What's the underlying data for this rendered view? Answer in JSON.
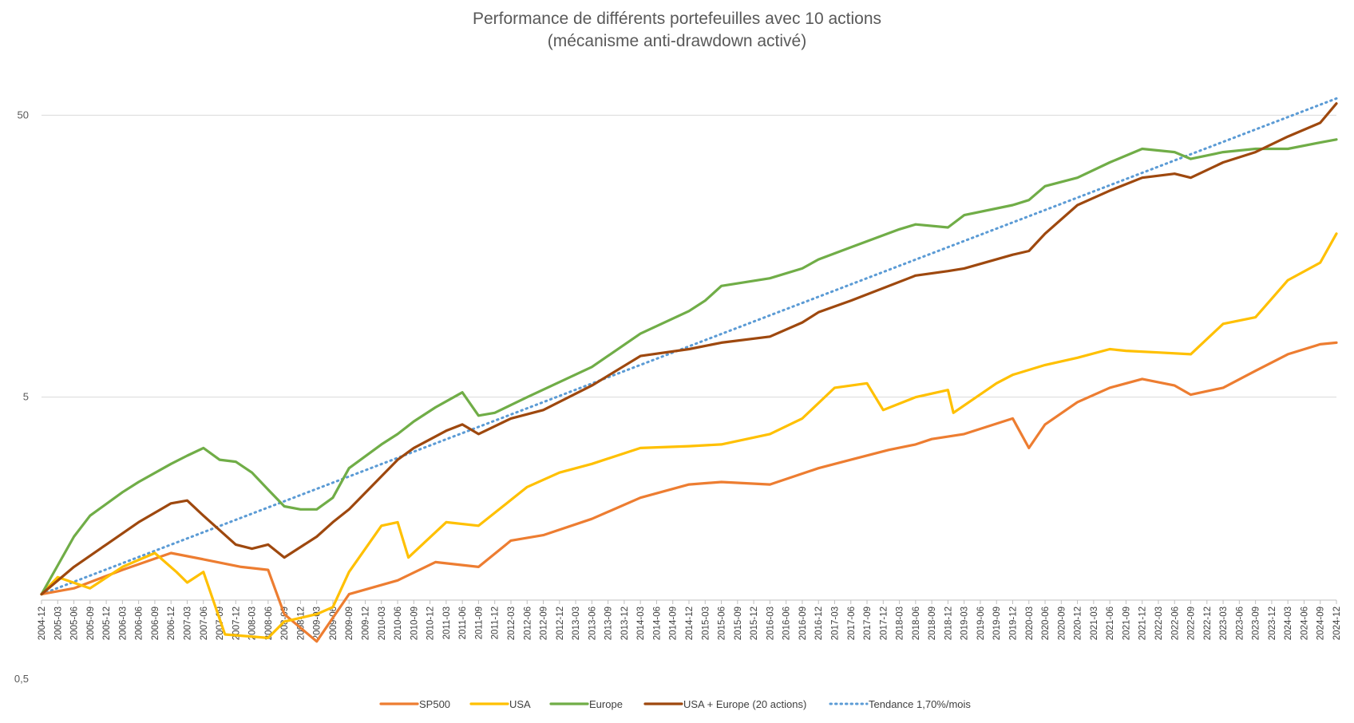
{
  "chart_data": {
    "type": "line",
    "title": "Performance de différents portefeuilles avec 10 actions",
    "subtitle": "(mécanisme anti-drawdown activé)",
    "xlabel": "",
    "ylabel": "",
    "y_scale": "log",
    "ylim": [
      0.5,
      100
    ],
    "y_ticks": [
      {
        "value": 0.5,
        "label": "0,5"
      },
      {
        "value": 5,
        "label": "5"
      },
      {
        "value": 50,
        "label": "50"
      }
    ],
    "grid": true,
    "legend_position": "bottom",
    "x_start": "2004-12",
    "x_end": "2024-12",
    "x_tick_every_months": 3,
    "colors": {
      "SP500": "#ED7D31",
      "USA": "#FFC000",
      "Europe": "#70AD47",
      "USA + Europe (20 actions)": "#9E480E",
      "Tendance 1,70%/mois": "#5B9BD5"
    },
    "series": [
      {
        "name": "SP500",
        "key": "sp500",
        "x": [
          "2004-12",
          "2005-06",
          "2006-03",
          "2006-12",
          "2007-06",
          "2008-01",
          "2008-06",
          "2008-09",
          "2009-03",
          "2009-09",
          "2010-06",
          "2011-01",
          "2011-09",
          "2012-03",
          "2012-09",
          "2013-06",
          "2014-03",
          "2014-12",
          "2015-06",
          "2016-03",
          "2016-12",
          "2017-06",
          "2018-01",
          "2018-06",
          "2018-09",
          "2019-03",
          "2019-12",
          "2020-03",
          "2020-06",
          "2020-12",
          "2021-06",
          "2021-12",
          "2022-06",
          "2022-09",
          "2023-03",
          "2023-09",
          "2024-03",
          "2024-09",
          "2024-12"
        ],
        "y": [
          1.0,
          1.05,
          1.22,
          1.4,
          1.33,
          1.25,
          1.22,
          0.85,
          0.68,
          1.0,
          1.12,
          1.3,
          1.25,
          1.55,
          1.62,
          1.85,
          2.2,
          2.45,
          2.5,
          2.45,
          2.8,
          3.0,
          3.25,
          3.4,
          3.55,
          3.7,
          4.2,
          3.3,
          4.0,
          4.8,
          5.4,
          5.8,
          5.5,
          5.1,
          5.4,
          6.2,
          7.1,
          7.7,
          7.8
        ]
      },
      {
        "name": "USA",
        "key": "usa",
        "x": [
          "2004-12",
          "2005-03",
          "2005-09",
          "2006-03",
          "2006-09",
          "2007-01",
          "2007-03",
          "2007-06",
          "2007-10",
          "2008-06",
          "2008-09",
          "2009-03",
          "2009-06",
          "2009-09",
          "2010-03",
          "2010-06",
          "2010-08",
          "2011-03",
          "2011-09",
          "2012-06",
          "2012-12",
          "2013-06",
          "2014-03",
          "2014-12",
          "2015-06",
          "2016-03",
          "2016-09",
          "2017-03",
          "2017-09",
          "2017-12",
          "2018-06",
          "2018-12",
          "2019-01",
          "2019-09",
          "2019-12",
          "2020-06",
          "2020-12",
          "2021-06",
          "2021-09",
          "2022-03",
          "2022-09",
          "2023-03",
          "2023-09",
          "2024-03",
          "2024-09",
          "2024-12"
        ],
        "y": [
          1.0,
          1.15,
          1.05,
          1.25,
          1.4,
          1.2,
          1.1,
          1.2,
          0.72,
          0.7,
          0.8,
          0.85,
          0.9,
          1.2,
          1.75,
          1.8,
          1.35,
          1.8,
          1.75,
          2.4,
          2.7,
          2.9,
          3.3,
          3.35,
          3.4,
          3.7,
          4.2,
          5.4,
          5.6,
          4.5,
          5.0,
          5.3,
          4.4,
          5.6,
          6.0,
          6.5,
          6.9,
          7.4,
          7.3,
          7.2,
          7.1,
          9.1,
          9.6,
          13.0,
          15.0,
          19.0
        ]
      },
      {
        "name": "Europe",
        "key": "europe",
        "x": [
          "2004-12",
          "2005-06",
          "2005-09",
          "2006-03",
          "2006-06",
          "2006-12",
          "2007-03",
          "2007-06",
          "2007-09",
          "2007-12",
          "2008-03",
          "2008-06",
          "2008-09",
          "2008-12",
          "2009-03",
          "2009-06",
          "2009-09",
          "2010-03",
          "2010-06",
          "2010-09",
          "2011-01",
          "2011-06",
          "2011-09",
          "2011-12",
          "2012-06",
          "2013-06",
          "2014-03",
          "2014-12",
          "2015-03",
          "2015-06",
          "2016-03",
          "2016-09",
          "2016-12",
          "2017-06",
          "2018-03",
          "2018-06",
          "2018-12",
          "2019-03",
          "2019-12",
          "2020-03",
          "2020-06",
          "2020-12",
          "2021-06",
          "2021-12",
          "2022-06",
          "2022-09",
          "2023-03",
          "2023-09",
          "2024-03",
          "2024-09",
          "2024-12"
        ],
        "y": [
          1.0,
          1.6,
          1.9,
          2.3,
          2.5,
          2.9,
          3.1,
          3.3,
          3.0,
          2.95,
          2.7,
          2.35,
          2.05,
          2.0,
          2.0,
          2.2,
          2.8,
          3.4,
          3.7,
          4.1,
          4.6,
          5.2,
          4.3,
          4.4,
          5.0,
          6.4,
          8.4,
          10.1,
          11.0,
          12.4,
          13.2,
          14.3,
          15.4,
          17.0,
          19.7,
          20.5,
          20.0,
          22.1,
          24.0,
          25.0,
          28.0,
          30.0,
          34.0,
          38.0,
          37.0,
          35.0,
          37.0,
          38.0,
          38.0,
          40.0,
          41.0
        ]
      },
      {
        "name": "USA + Europe (20 actions)",
        "key": "usaeu",
        "x": [
          "2004-12",
          "2005-06",
          "2005-12",
          "2006-06",
          "2006-12",
          "2007-03",
          "2007-06",
          "2007-12",
          "2008-03",
          "2008-06",
          "2008-09",
          "2009-03",
          "2009-06",
          "2009-09",
          "2010-06",
          "2010-09",
          "2011-03",
          "2011-06",
          "2011-09",
          "2012-03",
          "2012-09",
          "2013-06",
          "2014-03",
          "2014-12",
          "2015-06",
          "2016-03",
          "2016-09",
          "2016-12",
          "2017-06",
          "2018-06",
          "2018-12",
          "2019-03",
          "2019-12",
          "2020-03",
          "2020-06",
          "2020-12",
          "2021-06",
          "2021-12",
          "2022-06",
          "2022-09",
          "2023-03",
          "2023-09",
          "2024-03",
          "2024-09",
          "2024-12"
        ],
        "y": [
          1.0,
          1.25,
          1.5,
          1.8,
          2.1,
          2.15,
          1.9,
          1.5,
          1.45,
          1.5,
          1.35,
          1.6,
          1.8,
          2.0,
          3.0,
          3.3,
          3.8,
          4.0,
          3.7,
          4.2,
          4.5,
          5.5,
          7.0,
          7.4,
          7.8,
          8.2,
          9.2,
          10.0,
          11.0,
          13.5,
          14.0,
          14.3,
          16.0,
          16.5,
          19.0,
          24.0,
          27.0,
          30.0,
          31.0,
          30.0,
          34.0,
          37.0,
          42.0,
          47.0,
          55.0
        ]
      },
      {
        "name": "Tendance 1,70%/mois",
        "key": "trend",
        "style": "dotted",
        "x": [
          "2004-12",
          "2024-12"
        ],
        "y": [
          1.0,
          57.3
        ]
      }
    ]
  }
}
